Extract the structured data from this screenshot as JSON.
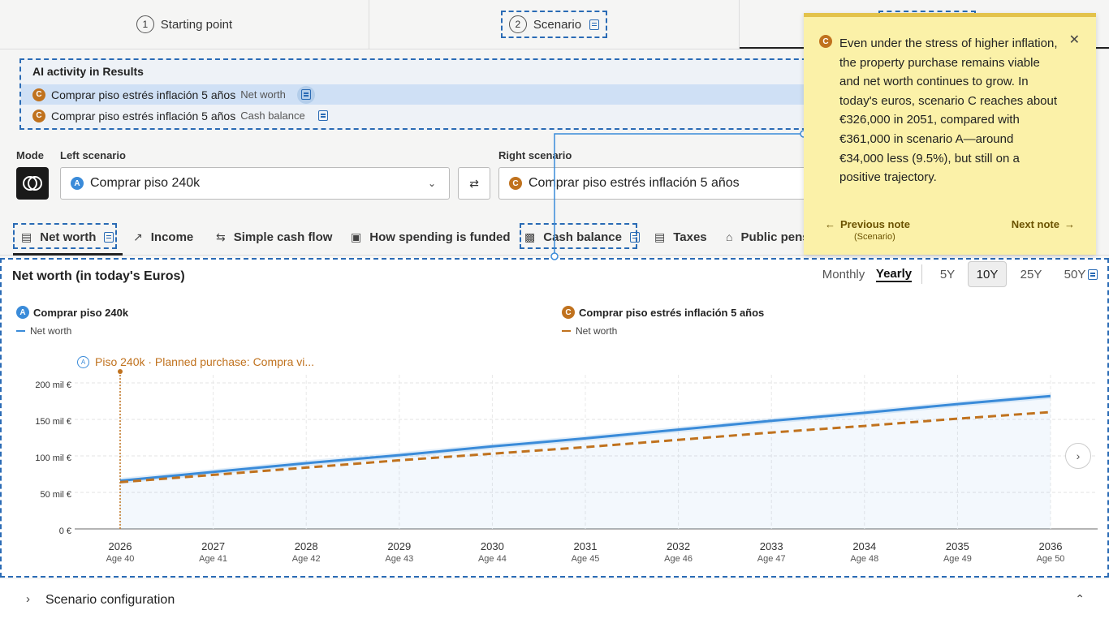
{
  "steps": [
    {
      "num": "1",
      "label": "Starting point"
    },
    {
      "num": "2",
      "label": "Scenario"
    }
  ],
  "ai_activity": {
    "title": "AI activity in Results",
    "items": [
      {
        "badge": "C",
        "name": "Comprar piso estrés inflación 5 años",
        "metric": "Net worth"
      },
      {
        "badge": "C",
        "name": "Comprar piso estrés inflación 5 años",
        "metric": "Cash balance"
      }
    ]
  },
  "mode_label": "Mode",
  "left_scenario": {
    "label": "Left scenario",
    "badge": "A",
    "value": "Comprar piso 240k"
  },
  "right_scenario": {
    "label": "Right scenario",
    "badge": "C",
    "value": "Comprar piso estrés inflación 5 años"
  },
  "tabs": [
    {
      "label": "Net worth",
      "icon": "chart-icon"
    },
    {
      "label": "Income",
      "icon": "trend-icon"
    },
    {
      "label": "Simple cash flow",
      "icon": "arrows-icon"
    },
    {
      "label": "How spending is funded",
      "icon": "wallet-icon"
    },
    {
      "label": "Cash balance",
      "icon": "cash-icon"
    },
    {
      "label": "Taxes",
      "icon": "receipt-icon"
    },
    {
      "label": "Public pens",
      "icon": "bank-icon"
    }
  ],
  "chart_panel": {
    "title": "Net worth (in today's Euros)",
    "period": {
      "monthly": "Monthly",
      "yearly": "Yearly"
    },
    "ranges": [
      "5Y",
      "10Y",
      "25Y",
      "50Y"
    ],
    "active_range": "10Y",
    "legend_a": {
      "badge": "A",
      "name": "Comprar piso 240k",
      "series": "Net worth"
    },
    "legend_c": {
      "badge": "C",
      "name": "Comprar piso estrés inflación 5 años",
      "series": "Net worth"
    },
    "event_label": "Piso 240k · Planned purchase: Compra vi..."
  },
  "chart_data": {
    "type": "line",
    "x": [
      "2026",
      "2027",
      "2028",
      "2029",
      "2030",
      "2031",
      "2032",
      "2033",
      "2034",
      "2035",
      "2036"
    ],
    "ages": [
      "Age 40",
      "Age 41",
      "Age 42",
      "Age 43",
      "Age 44",
      "Age 45",
      "Age 46",
      "Age 47",
      "Age 48",
      "Age 49",
      "Age 50"
    ],
    "yticks": [
      "0 €",
      "50 mil €",
      "100 mil €",
      "150 mil €",
      "200 mil €"
    ],
    "ylim": [
      0,
      200000
    ],
    "series": [
      {
        "name": "Net worth",
        "scenario": "A",
        "color": "#3a8bd9",
        "style": "solid",
        "values": [
          66000,
          78000,
          90000,
          101000,
          113000,
          124000,
          136000,
          148000,
          159000,
          171000,
          182000
        ]
      },
      {
        "name": "Net worth",
        "scenario": "C",
        "color": "#c0721e",
        "style": "dashed",
        "values": [
          64000,
          74000,
          84000,
          94000,
          103000,
          112000,
          122000,
          132000,
          141000,
          151000,
          160000
        ]
      }
    ]
  },
  "note": {
    "badge": "C",
    "text": "Even under the stress of higher inflation, the property purchase remains viable and net worth continues to grow. In today's euros, scenario C reaches about €326,000 in 2051, compared with €361,000 in scenario A—around €34,000 less (9.5%), but still on a positive trajectory.",
    "prev": "Previous note",
    "prev_sub": "(Scenario)",
    "next": "Next note"
  },
  "footer": {
    "label": "Scenario configuration"
  }
}
